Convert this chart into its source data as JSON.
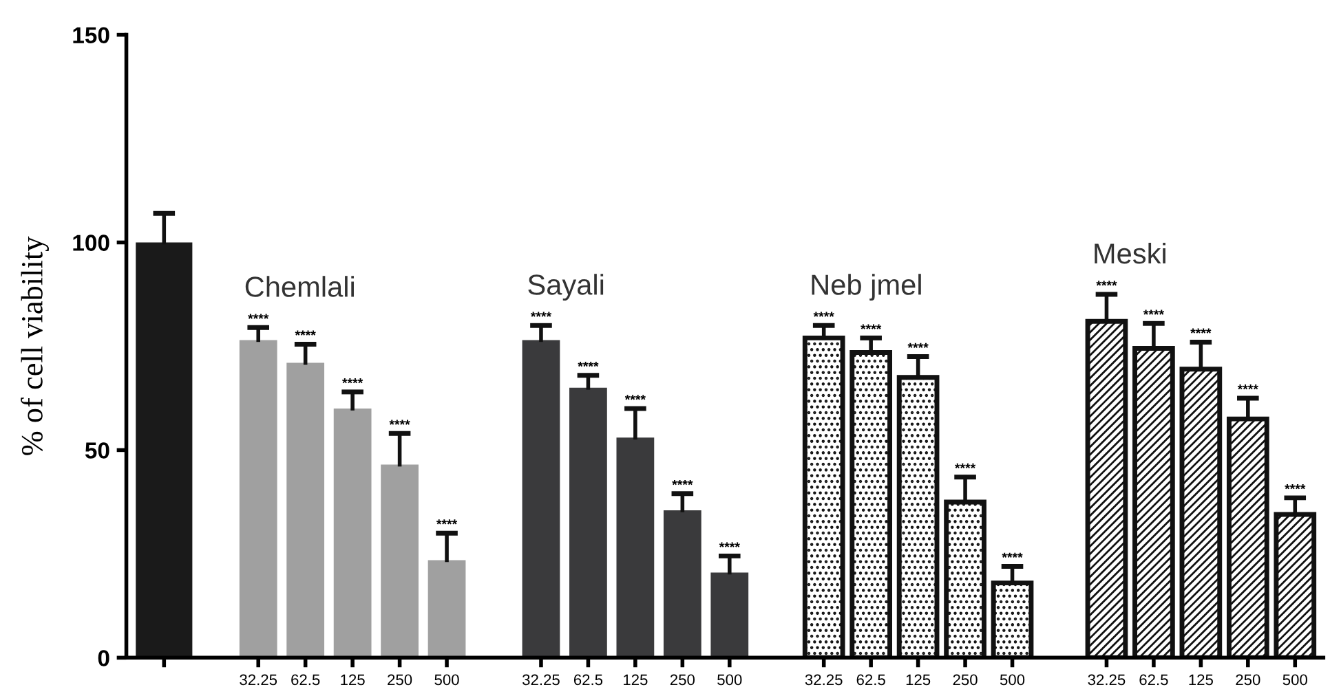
{
  "chart_data": {
    "type": "bar",
    "ylabel": "% of cell viability",
    "categories": [
      null,
      null,
      "32.25",
      "62.5",
      "125",
      "250",
      "500",
      null,
      "32.25",
      "62.5",
      "125",
      "250",
      "500",
      null,
      "32.25",
      "62.5",
      "125",
      "250",
      "500",
      null,
      "32.25",
      "62.5",
      "125",
      "250",
      "500"
    ],
    "series": [
      {
        "color": "#1a1a1a",
        "values": [
          100,
          null,
          null,
          null,
          null,
          null,
          null,
          null,
          null,
          null,
          null,
          null,
          null,
          null,
          null,
          null,
          null,
          null,
          null,
          null,
          null,
          null,
          null,
          null,
          null
        ],
        "errors": [
          [
            100,
            107
          ],
          null,
          null,
          null,
          null,
          null,
          null,
          null,
          null,
          null,
          null,
          null,
          null,
          null,
          null,
          null,
          null,
          null,
          null,
          null,
          null,
          null,
          null,
          null,
          null
        ]
      },
      {
        "name": "Chemlali",
        "color": "#a0a0a0",
        "values": [
          null,
          null,
          76.5,
          71,
          60,
          46.5,
          23.5,
          null,
          null,
          null,
          null,
          null,
          null,
          null,
          null,
          null,
          null,
          null,
          null,
          null,
          null,
          null,
          null,
          null,
          null
        ],
        "errors": [
          null,
          null,
          [
            76.5,
            79.5
          ],
          [
            71,
            75.5
          ],
          [
            60,
            64
          ],
          [
            46.5,
            54
          ],
          [
            23.5,
            30
          ],
          null,
          null,
          null,
          null,
          null,
          null,
          null,
          null,
          null,
          null,
          null,
          null,
          null,
          null,
          null,
          null,
          null,
          null
        ],
        "value_labels": [
          null,
          null,
          "****",
          "****",
          "****",
          "****",
          "****",
          null,
          null,
          null,
          null,
          null,
          null,
          null,
          null,
          null,
          null,
          null,
          null,
          null,
          null,
          null,
          null,
          null,
          null
        ]
      },
      {
        "name": "Sayali",
        "color": "#3a3a3c",
        "values": [
          null,
          null,
          null,
          null,
          null,
          null,
          null,
          null,
          76.5,
          65,
          53,
          35.5,
          20.5,
          null,
          null,
          null,
          null,
          null,
          null,
          null,
          null,
          null,
          null,
          null,
          null
        ],
        "errors": [
          null,
          null,
          null,
          null,
          null,
          null,
          null,
          null,
          [
            76.5,
            80
          ],
          [
            65,
            68
          ],
          [
            53,
            60
          ],
          [
            35.5,
            39.5
          ],
          [
            20.5,
            24.5
          ],
          null,
          null,
          null,
          null,
          null,
          null,
          null,
          null,
          null,
          null,
          null,
          null
        ],
        "value_labels": [
          null,
          null,
          null,
          null,
          null,
          null,
          null,
          null,
          "****",
          "****",
          "****",
          "****",
          "****",
          null,
          null,
          null,
          null,
          null,
          null,
          null,
          null,
          null,
          null,
          null,
          null
        ]
      },
      {
        "name": "Neb jmel",
        "color": "#111111",
        "values": [
          null,
          null,
          null,
          null,
          null,
          null,
          null,
          null,
          null,
          null,
          null,
          null,
          null,
          null,
          77,
          73.5,
          67.5,
          37.5,
          18,
          null,
          null,
          null,
          null,
          null,
          null
        ],
        "errors": [
          null,
          null,
          null,
          null,
          null,
          null,
          null,
          null,
          null,
          null,
          null,
          null,
          null,
          null,
          [
            77,
            80
          ],
          [
            73.5,
            77
          ],
          [
            67.5,
            72.5
          ],
          [
            37.5,
            43.5
          ],
          [
            18,
            22
          ],
          null,
          null,
          null,
          null,
          null,
          null
        ],
        "value_labels": [
          null,
          null,
          null,
          null,
          null,
          null,
          null,
          null,
          null,
          null,
          null,
          null,
          null,
          null,
          "****",
          "****",
          "****",
          "****",
          "****",
          null,
          null,
          null,
          null,
          null,
          null
        ]
      },
      {
        "name": "Meski",
        "color": "#111111",
        "values": [
          null,
          null,
          null,
          null,
          null,
          null,
          null,
          null,
          null,
          null,
          null,
          null,
          null,
          null,
          null,
          null,
          null,
          null,
          null,
          null,
          81,
          74.5,
          69.5,
          57.5,
          34.5
        ],
        "errors": [
          null,
          null,
          null,
          null,
          null,
          null,
          null,
          null,
          null,
          null,
          null,
          null,
          null,
          null,
          null,
          null,
          null,
          null,
          null,
          null,
          [
            81,
            87.5
          ],
          [
            74.5,
            80.5
          ],
          [
            69.5,
            76
          ],
          [
            57.5,
            62.5
          ],
          [
            34.5,
            38.5
          ]
        ],
        "value_labels": [
          null,
          null,
          null,
          null,
          null,
          null,
          null,
          null,
          null,
          null,
          null,
          null,
          null,
          null,
          null,
          null,
          null,
          null,
          null,
          null,
          "****",
          "****",
          "****",
          "****",
          "****"
        ]
      }
    ],
    "ylim": [
      0,
      150
    ],
    "yticks": [
      0,
      50,
      100,
      150
    ],
    "grid": false,
    "legend": false
  }
}
